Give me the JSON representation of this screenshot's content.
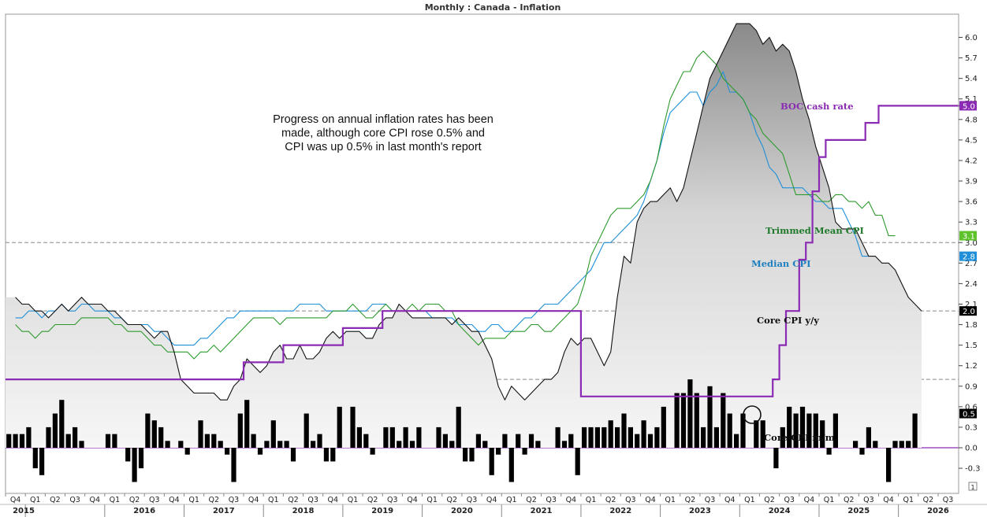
{
  "chart_data": {
    "type": "line",
    "title": "Monthly : Canada - Inflation",
    "annotation": "Progress on annual inflation rates has been made, although core CPI rose 0.5% and CPI was up 0.5% in last month's report",
    "annotation_lines": [
      "Progress on annual inflation rates has been",
      "made, although core CPI rose 0.5% and",
      "CPI was up 0.5% in last month's report"
    ],
    "y_axis": {
      "position": "right",
      "ylim": [
        -0.6,
        6.3
      ],
      "ticks": [
        -0.3,
        0.0,
        0.3,
        0.6,
        0.9,
        1.2,
        1.5,
        1.8,
        2.1,
        2.4,
        2.7,
        3.0,
        3.3,
        3.6,
        3.9,
        4.2,
        4.5,
        4.8,
        5.1,
        5.4,
        5.7,
        6.0
      ],
      "tick_labels": [
        "-0.3",
        "0.0",
        "0.3",
        "0.6",
        "0.9",
        "1.2",
        "1.5",
        "1.8",
        "2.1",
        "2.4",
        "2.7",
        "3.0",
        "3.3",
        "3.6",
        "3.9",
        "4.2",
        "4.5",
        "4.8",
        "5.1",
        "5.4",
        "5.7",
        "6.0"
      ]
    },
    "x_axis": {
      "start": "2014-10",
      "end": "2026-09",
      "quarter_labels": [
        "Q4",
        "Q1",
        "Q2",
        "Q3",
        "Q4",
        "Q1",
        "Q2",
        "Q3",
        "Q4",
        "Q1",
        "Q2",
        "Q3",
        "Q4",
        "Q1",
        "Q2",
        "Q3",
        "Q4",
        "Q1",
        "Q2",
        "Q3",
        "Q4",
        "Q1",
        "Q2",
        "Q3",
        "Q4",
        "Q1",
        "Q2",
        "Q3",
        "Q4",
        "Q1",
        "Q2",
        "Q3",
        "Q4",
        "Q1",
        "Q2",
        "Q3",
        "Q4",
        "Q1",
        "Q2",
        "Q3",
        "Q4",
        "Q1",
        "Q2",
        "Q3",
        "Q4",
        "Q1",
        "Q2",
        "Q3"
      ],
      "year_labels": [
        "2015",
        "2016",
        "2017",
        "2018",
        "2019",
        "2020",
        "2021",
        "2022",
        "2023",
        "2024",
        "2025",
        "2026"
      ]
    },
    "reference_lines": [
      {
        "value": 3.0,
        "label": "3.0",
        "style": "dashed"
      },
      {
        "value": 2.0,
        "label": "2.0",
        "style": "dashed"
      },
      {
        "value": 1.0,
        "label": "1.0",
        "style": "dashed"
      },
      {
        "value": 0.0,
        "label": "0.0",
        "style": "solid",
        "color": "#8b2bb3"
      }
    ],
    "series": [
      {
        "name": "Core CPI y/y",
        "type": "area",
        "color": "#111111",
        "last_value": "2.0",
        "start": "2014-11",
        "values": [
          2.2,
          2.1,
          2.1,
          2.0,
          2.0,
          1.9,
          2.0,
          2.1,
          2.0,
          2.1,
          2.2,
          2.1,
          2.1,
          2.1,
          2.0,
          2.0,
          1.9,
          1.8,
          1.8,
          1.8,
          1.7,
          1.6,
          1.7,
          1.7,
          1.4,
          1.0,
          0.9,
          0.8,
          0.8,
          0.8,
          0.8,
          0.7,
          0.7,
          0.9,
          1.0,
          1.3,
          1.2,
          1.1,
          1.2,
          1.4,
          1.5,
          1.3,
          1.3,
          1.5,
          1.3,
          1.3,
          1.4,
          1.6,
          1.7,
          1.6,
          1.7,
          1.7,
          1.7,
          1.6,
          1.6,
          1.8,
          1.9,
          1.9,
          2.1,
          2.0,
          1.9,
          1.9,
          1.9,
          1.9,
          1.9,
          1.9,
          1.8,
          1.9,
          1.8,
          1.7,
          1.7,
          1.5,
          1.3,
          0.9,
          0.7,
          0.9,
          0.8,
          0.7,
          0.8,
          0.9,
          1.0,
          1.0,
          1.1,
          1.4,
          1.6,
          1.5,
          1.6,
          1.6,
          1.4,
          1.2,
          1.4,
          2.2,
          2.8,
          2.7,
          3.3,
          3.5,
          3.6,
          3.6,
          3.7,
          3.8,
          3.6,
          3.8,
          4.2,
          4.6,
          5.0,
          5.4,
          5.6,
          5.8,
          6.0,
          6.2,
          6.2,
          6.2,
          6.1,
          5.9,
          6.0,
          5.8,
          5.9,
          5.8,
          5.5,
          5.1,
          4.8,
          4.4,
          4.1,
          3.8,
          3.3,
          3.2,
          3.2,
          3.2,
          3.0,
          2.8,
          2.8,
          2.7,
          2.7,
          2.6,
          2.4,
          2.2,
          2.1,
          2.0
        ]
      },
      {
        "name": "Trimmed Mean CPI",
        "type": "line",
        "color": "#2e9a2e",
        "last_value": "3.1",
        "start": "2014-11",
        "values": [
          1.8,
          1.7,
          1.7,
          1.6,
          1.7,
          1.7,
          1.8,
          1.8,
          1.8,
          1.8,
          1.9,
          1.9,
          1.9,
          1.9,
          1.9,
          1.8,
          1.8,
          1.7,
          1.7,
          1.7,
          1.6,
          1.5,
          1.5,
          1.4,
          1.4,
          1.4,
          1.4,
          1.3,
          1.4,
          1.4,
          1.5,
          1.4,
          1.5,
          1.6,
          1.7,
          1.8,
          1.9,
          1.9,
          1.9,
          1.9,
          1.8,
          1.9,
          1.9,
          1.9,
          1.9,
          1.9,
          1.9,
          1.9,
          2.0,
          2.0,
          2.0,
          2.1,
          2.0,
          1.9,
          1.9,
          2.0,
          2.1,
          2.0,
          2.0,
          2.0,
          2.1,
          2.0,
          2.1,
          2.1,
          2.1,
          2.0,
          2.0,
          1.8,
          1.7,
          1.6,
          1.5,
          1.6,
          1.6,
          1.6,
          1.6,
          1.7,
          1.7,
          1.7,
          1.8,
          1.8,
          1.7,
          1.7,
          1.8,
          1.9,
          2.0,
          2.1,
          2.4,
          2.8,
          3.0,
          3.2,
          3.4,
          3.5,
          3.5,
          3.5,
          3.6,
          3.7,
          3.9,
          4.2,
          4.7,
          5.1,
          5.3,
          5.5,
          5.5,
          5.7,
          5.8,
          5.7,
          5.6,
          5.4,
          5.3,
          5.2,
          5.1,
          4.9,
          4.8,
          4.6,
          4.5,
          4.4,
          4.3,
          4.0,
          3.7,
          3.7,
          3.7,
          3.7,
          3.6,
          3.6,
          3.7,
          3.7,
          3.6,
          3.6,
          3.5,
          3.6,
          3.4,
          3.4,
          3.1,
          3.1
        ]
      },
      {
        "name": "Median CPI",
        "type": "line",
        "color": "#1e8fd8",
        "last_value": "2.8",
        "start": "2014-11",
        "values": [
          1.9,
          1.9,
          2.0,
          2.0,
          1.9,
          2.0,
          2.0,
          2.1,
          2.0,
          2.0,
          2.1,
          2.1,
          2.0,
          2.0,
          2.0,
          1.9,
          1.9,
          1.8,
          1.8,
          1.8,
          1.8,
          1.7,
          1.7,
          1.6,
          1.5,
          1.5,
          1.5,
          1.5,
          1.6,
          1.6,
          1.7,
          1.8,
          1.9,
          1.9,
          2.0,
          2.0,
          2.0,
          2.0,
          2.0,
          2.0,
          2.0,
          2.0,
          2.0,
          2.1,
          2.1,
          2.1,
          2.1,
          2.0,
          2.0,
          2.0,
          2.0,
          2.0,
          2.0,
          2.0,
          2.1,
          2.1,
          2.1,
          2.0,
          2.0,
          2.0,
          2.0,
          2.0,
          2.0,
          1.9,
          1.9,
          1.9,
          1.9,
          1.8,
          1.8,
          1.8,
          1.7,
          1.7,
          1.8,
          1.8,
          1.7,
          1.7,
          1.8,
          1.9,
          1.9,
          2.0,
          2.1,
          2.1,
          2.1,
          2.2,
          2.3,
          2.4,
          2.5,
          2.6,
          2.8,
          3.0,
          3.0,
          3.1,
          3.2,
          3.3,
          3.4,
          3.6,
          3.9,
          4.2,
          4.6,
          4.9,
          5.0,
          5.1,
          5.2,
          5.2,
          5.0,
          5.2,
          5.3,
          5.5,
          5.2,
          5.2,
          5.1,
          4.9,
          4.6,
          4.4,
          4.1,
          4.0,
          3.8,
          3.8,
          3.8,
          3.8,
          3.7,
          3.6,
          3.6,
          3.5,
          3.5,
          3.5,
          3.3,
          3.1,
          2.8,
          2.8
        ]
      },
      {
        "name": "BOC cash rate",
        "type": "step",
        "color": "#8b2bb3",
        "last_value": "5.0",
        "start": "2014-10",
        "values": [
          1.0,
          1.0,
          1.0,
          1.0,
          1.0,
          1.0,
          1.0,
          1.0,
          1.0,
          1.0,
          1.0,
          1.0,
          1.0,
          1.0,
          1.0,
          1.0,
          1.0,
          1.0,
          1.0,
          1.0,
          1.0,
          1.0,
          1.0,
          1.0,
          1.0,
          1.0,
          1.0,
          1.0,
          1.0,
          1.0,
          1.0,
          1.0,
          1.0,
          1.0,
          1.0,
          1.0,
          1.25,
          1.25,
          1.25,
          1.25,
          1.25,
          1.25,
          1.5,
          1.5,
          1.5,
          1.5,
          1.5,
          1.5,
          1.5,
          1.5,
          1.5,
          1.75,
          1.75,
          1.75,
          1.75,
          1.75,
          1.75,
          2.0,
          2.0,
          2.0,
          2.0,
          2.0,
          2.0,
          2.0,
          2.0,
          2.0,
          2.0,
          2.0,
          2.0,
          2.0,
          2.0,
          2.0,
          2.0,
          2.0,
          2.0,
          2.0,
          2.0,
          2.0,
          2.0,
          2.0,
          2.0,
          2.0,
          2.0,
          2.0,
          2.0,
          2.0,
          2.0,
          0.75,
          0.75,
          0.75,
          0.75,
          0.75,
          0.75,
          0.75,
          0.75,
          0.75,
          0.75,
          0.75,
          0.75,
          0.75,
          0.75,
          0.75,
          0.75,
          0.75,
          0.75,
          0.75,
          0.75,
          0.75,
          0.75,
          0.75,
          0.75,
          0.75,
          0.75,
          0.75,
          0.75,
          0.75,
          1.0,
          1.5,
          2.0,
          2.0,
          2.75,
          3.0,
          3.75,
          4.25,
          4.5,
          4.5,
          4.5,
          4.5,
          4.5,
          4.5,
          4.75,
          4.75,
          5.0,
          5.0,
          5.0,
          5.0,
          5.0,
          5.0,
          5.0,
          5.0,
          5.0,
          5.0,
          5.0,
          5.0,
          5.0,
          5.0
        ]
      },
      {
        "name": "Core CPI m/m",
        "type": "bar",
        "color": "#000000",
        "last_value": "0.5",
        "start": "2014-10",
        "values": [
          0.2,
          0.2,
          0.2,
          0.3,
          -0.3,
          -0.4,
          0.3,
          0.5,
          0.7,
          0.2,
          0.3,
          0.1,
          0.0,
          0.0,
          0.0,
          0.2,
          0.2,
          0.0,
          -0.2,
          -0.5,
          -0.3,
          0.5,
          0.4,
          0.3,
          0.1,
          0.0,
          0.1,
          -0.1,
          0.0,
          0.4,
          0.2,
          0.2,
          0.1,
          -0.1,
          -0.5,
          0.5,
          0.7,
          0.2,
          -0.1,
          0.1,
          0.4,
          0.1,
          0.1,
          -0.2,
          0.0,
          0.5,
          0.1,
          0.2,
          -0.2,
          -0.2,
          0.6,
          0.0,
          0.6,
          0.3,
          0.2,
          -0.1,
          0.0,
          0.3,
          0.3,
          0.1,
          0.3,
          0.1,
          0.3,
          0.0,
          0.0,
          0.3,
          0.2,
          0.1,
          0.6,
          -0.2,
          -0.2,
          0.2,
          0.1,
          -0.4,
          -0.1,
          0.2,
          -0.5,
          0.2,
          -0.1,
          0.2,
          0.1,
          0.0,
          0.0,
          0.3,
          0.1,
          0.2,
          -0.4,
          0.3,
          0.3,
          0.3,
          0.3,
          0.4,
          0.3,
          0.5,
          0.3,
          0.2,
          0.4,
          0.2,
          0.3,
          0.6,
          0.0,
          0.8,
          0.8,
          1.0,
          0.8,
          0.3,
          0.9,
          0.3,
          0.8,
          0.5,
          0.2,
          0.5,
          0.0,
          0.4,
          0.4,
          0.0,
          -0.3,
          0.3,
          0.6,
          0.5,
          0.6,
          0.5,
          0.5,
          0.4,
          -0.1,
          0.5,
          0.0,
          0.0,
          0.1,
          -0.1,
          0.3,
          0.1,
          0.0,
          -0.5,
          0.1,
          0.1,
          0.1,
          0.5
        ]
      }
    ]
  }
}
